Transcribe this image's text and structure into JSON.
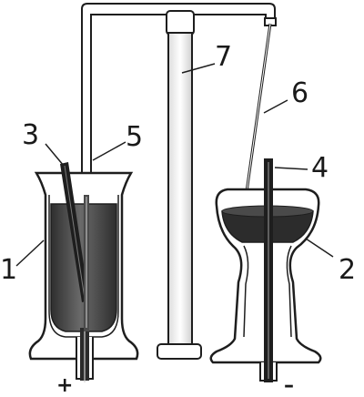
{
  "labels": {
    "n1": "1",
    "n2": "2",
    "n3": "3",
    "n4": "4",
    "n5": "5",
    "n6": "6",
    "n7": "7",
    "plus": "+",
    "minus": "–"
  },
  "colors": {
    "line": "#1e1e1e",
    "liquid": "#3a3a3a",
    "liquid_light": "#6e6e6e",
    "background": "#ffffff"
  }
}
